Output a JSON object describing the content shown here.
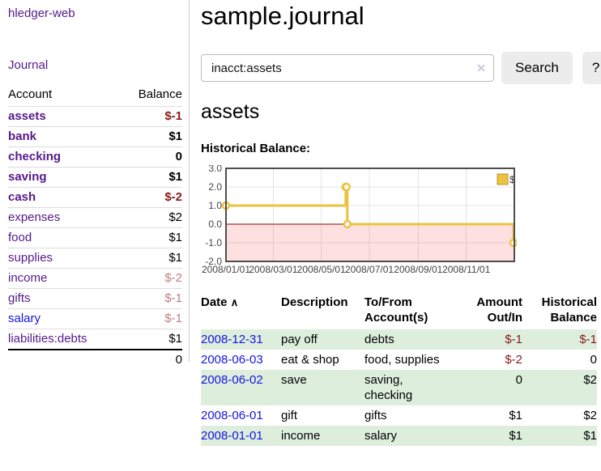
{
  "colors": {
    "link_purple": "#551a8b",
    "link_blue": "#1515e0",
    "negative": "#8b1a1a",
    "negative_soft": "#bf7e7e",
    "row_green": "#ddeedd",
    "chart_gold": "#edc240",
    "chart_border": "#4d4d4d",
    "grid_line": "#e4e4e4",
    "zero_line": "#8b0000",
    "negative_region": "#ff0000"
  },
  "sidebar": {
    "brand": "hledger-web",
    "journal_link": "Journal",
    "accounts_table": {
      "headers": {
        "account": "Account",
        "balance": "Balance"
      },
      "rows": [
        {
          "name": "assets",
          "balance": "$-1",
          "depth": 1,
          "bold": true,
          "balance_negative": "strong"
        },
        {
          "name": "bank",
          "balance": "$1",
          "depth": 2,
          "bold": true
        },
        {
          "name": "checking",
          "balance": "0",
          "depth": 3,
          "bold": true
        },
        {
          "name": "saving",
          "balance": "$1",
          "depth": 3,
          "bold": true
        },
        {
          "name": "cash",
          "balance": "$-2",
          "depth": 2,
          "bold": true,
          "balance_negative": "strong"
        },
        {
          "name": "expenses",
          "balance": "$2",
          "depth": 1,
          "bold": false
        },
        {
          "name": "food",
          "balance": "$1",
          "depth": 2,
          "bold": false
        },
        {
          "name": "supplies",
          "balance": "$1",
          "depth": 2,
          "bold": false
        },
        {
          "name": "income",
          "balance": "$-2",
          "depth": 1,
          "bold": false,
          "balance_negative": "soft"
        },
        {
          "name": "gifts",
          "balance": "$-1",
          "depth": 2,
          "bold": false,
          "balance_negative": "soft"
        },
        {
          "name": "salary",
          "balance": "$-1",
          "depth": 2,
          "bold": false,
          "balance_negative": "soft",
          "link_color": "blue"
        },
        {
          "name": "liabilities:debts",
          "balance": "$1",
          "depth": 1,
          "bold": false
        }
      ],
      "total": "0"
    }
  },
  "main": {
    "title": "sample.journal",
    "search": {
      "value": "inacct:assets",
      "clear_icon": "✕",
      "button_label": "Search",
      "help_button_label": "?"
    },
    "account_heading": "assets",
    "chart_heading": "Historical Balance:",
    "register": {
      "sort_icon": "∧",
      "headers": {
        "date": "Date",
        "description": "Description",
        "accounts": "To/From\nAccount(s)",
        "amount": "Amount\nOut/In",
        "balance": "Historical\nBalance"
      },
      "rows": [
        {
          "date": "2008-12-31",
          "description": "pay off",
          "accounts": "debts",
          "amount": "$-1",
          "balance": "$-1"
        },
        {
          "date": "2008-06-03",
          "description": "eat & shop",
          "accounts": "food, supplies",
          "amount": "$-2",
          "balance": "0"
        },
        {
          "date": "2008-06-02",
          "description": "save",
          "accounts": "saving,\nchecking",
          "amount": "0",
          "balance": "$2"
        },
        {
          "date": "2008-06-01",
          "description": "gift",
          "accounts": "gifts",
          "amount": "$1",
          "balance": "$2"
        },
        {
          "date": "2008-01-01",
          "description": "income",
          "accounts": "salary",
          "amount": "$1",
          "balance": "$1"
        }
      ]
    }
  },
  "chart_data": {
    "type": "line",
    "step": true,
    "title": "",
    "xlabel": "",
    "ylabel": "",
    "legend": {
      "label": "$",
      "position": "top-right"
    },
    "series": [
      {
        "name": "$",
        "color": "#edc240",
        "points": [
          [
            "2008-01-01",
            1.0
          ],
          [
            "2008-06-01",
            2.0
          ],
          [
            "2008-06-02",
            2.0
          ],
          [
            "2008-06-03",
            0.0
          ],
          [
            "2008-12-31",
            -1.0
          ]
        ]
      }
    ],
    "xlim": [
      "2008-01-01",
      "2009-01-01"
    ],
    "ylim": [
      -2.0,
      3.0
    ],
    "grid": true,
    "yticks": [
      {
        "value": 3.0,
        "label": "3.0"
      },
      {
        "value": 2.0,
        "label": "2.0"
      },
      {
        "value": 1.0,
        "label": "1.0"
      },
      {
        "value": 0.0,
        "label": "0.0"
      },
      {
        "value": -1.0,
        "label": "-1.0"
      },
      {
        "value": -2.0,
        "label": "-2.0"
      }
    ],
    "xticks": [
      {
        "value": "2008-01-01",
        "label": "2008/01/01"
      },
      {
        "value": "2008-03-01",
        "label": "2008/03/01"
      },
      {
        "value": "2008-05-01",
        "label": "2008/05/01"
      },
      {
        "value": "2008-07-01",
        "label": "2008/07/01"
      },
      {
        "value": "2008-09-01",
        "label": "2008/09/01"
      },
      {
        "value": "2008-11-01",
        "label": "2008/11/01"
      }
    ],
    "negative_region_shaded": true,
    "zero_line_color": "#8b0000"
  }
}
